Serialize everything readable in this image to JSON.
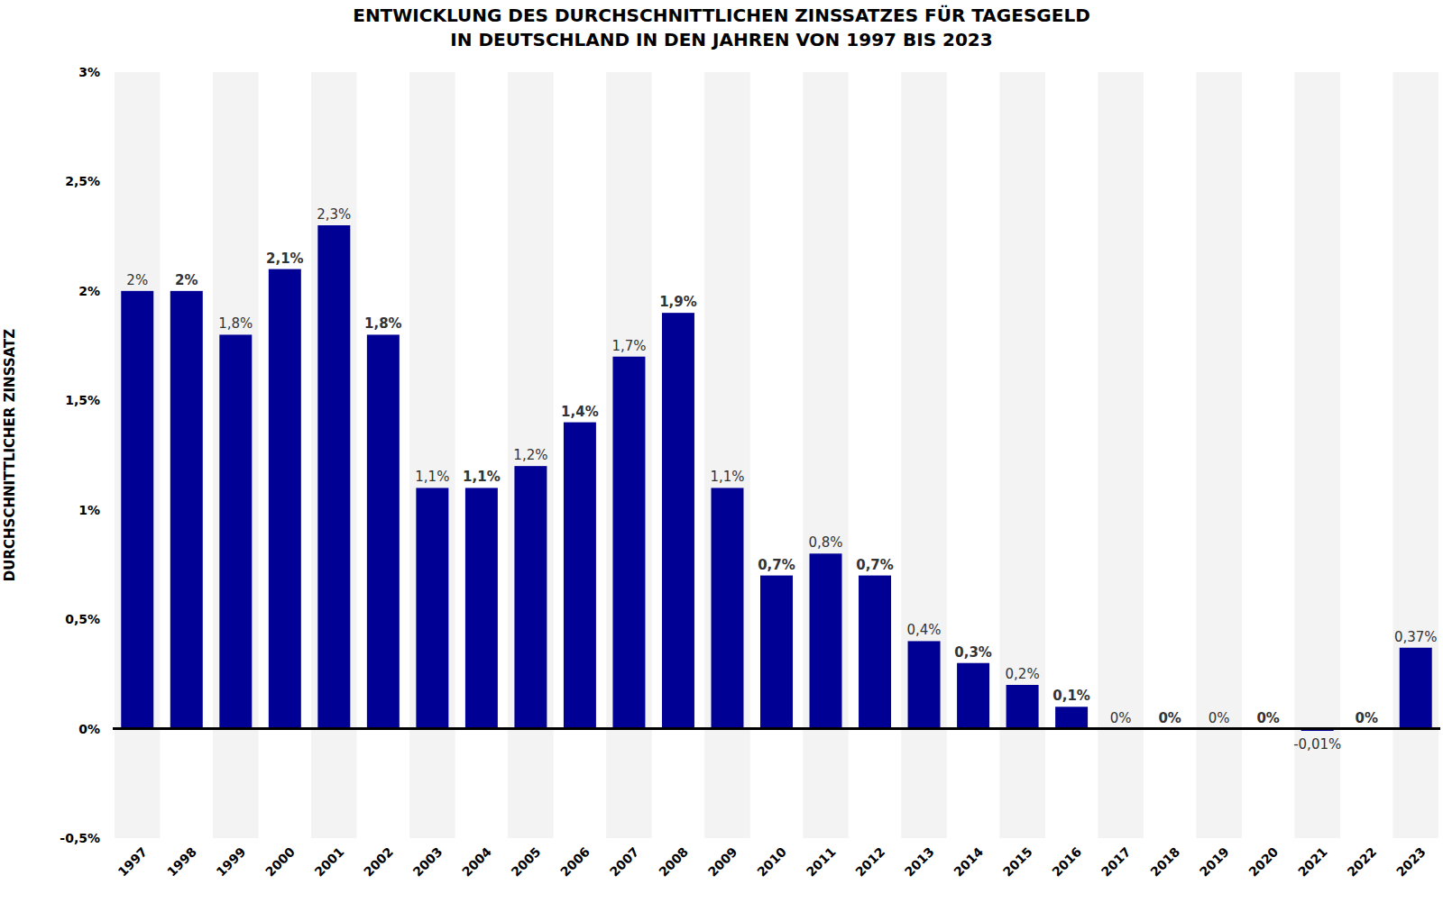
{
  "chart_data": {
    "type": "bar",
    "title": "ENTWICKLUNG DES DURCHSCHNITTLICHEN ZINSSATZES FÜR TAGESGELD\nIN DEUTSCHLAND IN DEN JAHREN VON 1997 BIS 2023",
    "y_label": "DURCHSCHNITTLICHER ZINSSATZ",
    "categories": [
      "1997",
      "1998",
      "1999",
      "2000",
      "2001",
      "2002",
      "2003",
      "2004",
      "2005",
      "2006",
      "2007",
      "2008",
      "2009",
      "2010",
      "2011",
      "2012",
      "2013",
      "2014",
      "2015",
      "2016",
      "2017",
      "2018",
      "2019",
      "2020",
      "2021",
      "2022",
      "2023"
    ],
    "values": [
      2,
      2,
      1.8,
      2.1,
      2.3,
      1.8,
      1.1,
      1.1,
      1.2,
      1.4,
      1.7,
      1.9,
      1.1,
      0.7,
      0.8,
      0.7,
      0.4,
      0.3,
      0.2,
      0.1,
      0,
      0,
      0,
      0,
      -0.01,
      0,
      0.37
    ],
    "value_labels": [
      "2%",
      "2%",
      "1,8%",
      "2,1%",
      "2,3%",
      "1,8%",
      "1,1%",
      "1,1%",
      "1,2%",
      "1,4%",
      "1,7%",
      "1,9%",
      "1,1%",
      "0,7%",
      "0,8%",
      "0,7%",
      "0,4%",
      "0,3%",
      "0,2%",
      "0,1%",
      "0%",
      "0%",
      "0%",
      "0%",
      "-0,01%",
      "0%",
      "0,37%"
    ],
    "data_labels": true,
    "color": "#000095",
    "grid": false,
    "ylim": [
      -0.5,
      3
    ],
    "yticks": [
      {
        "value": -0.5,
        "label": "-0,5%"
      },
      {
        "value": 0,
        "label": "0%"
      },
      {
        "value": 0.5,
        "label": "0,5%"
      },
      {
        "value": 1,
        "label": "1%"
      },
      {
        "value": 1.5,
        "label": "1,5%"
      },
      {
        "value": 2,
        "label": "2%"
      },
      {
        "value": 2.5,
        "label": "2,5%"
      },
      {
        "value": 3,
        "label": "3%"
      }
    ]
  }
}
